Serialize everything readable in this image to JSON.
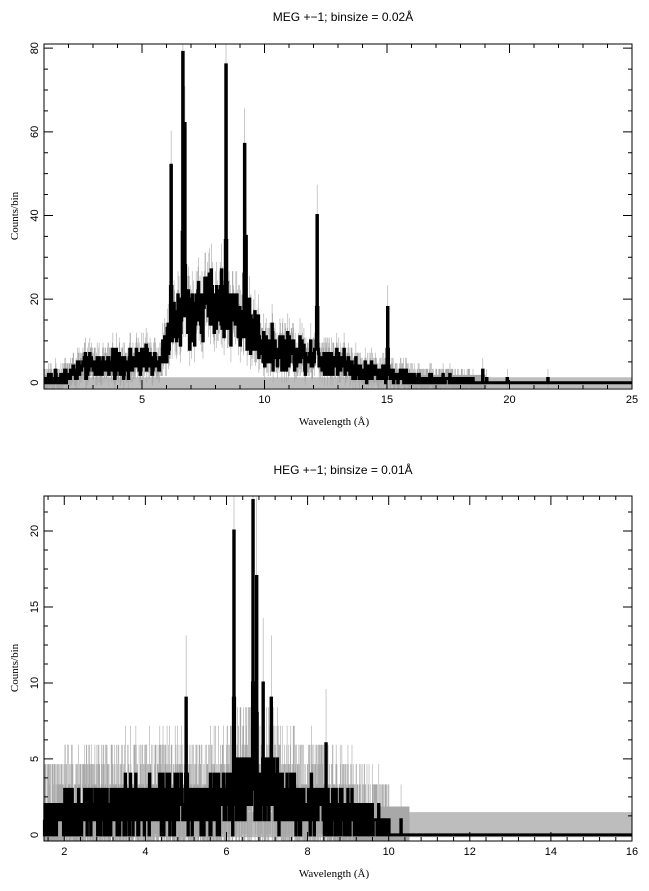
{
  "chart_data": [
    {
      "type": "line",
      "title": "MEG +−1; binsize = 0.02Å",
      "xlabel": "Wavelength (Å)",
      "ylabel": "Counts/bin",
      "xlim": [
        1.0,
        25.0
      ],
      "ylim": [
        -1.5,
        81.0
      ],
      "xticks": [
        5,
        10,
        15,
        20,
        25
      ],
      "yticks": [
        0,
        20,
        40,
        60,
        80
      ],
      "background_band": [
        -1.3,
        1.3
      ],
      "peaks": [
        {
          "x": 6.18,
          "y": 52
        },
        {
          "x": 6.65,
          "y": 79
        },
        {
          "x": 6.74,
          "y": 62
        },
        {
          "x": 8.42,
          "y": 76
        },
        {
          "x": 9.17,
          "y": 57
        },
        {
          "x": 9.23,
          "y": 35
        },
        {
          "x": 12.13,
          "y": 40
        },
        {
          "x": 15.01,
          "y": 18
        }
      ],
      "envelope": [
        [
          1.0,
          0.5
        ],
        [
          2.0,
          2
        ],
        [
          2.8,
          4
        ],
        [
          3.5,
          4
        ],
        [
          4.0,
          4.5
        ],
        [
          5.0,
          5
        ],
        [
          5.8,
          6
        ],
        [
          6.3,
          13
        ],
        [
          6.9,
          17
        ],
        [
          7.5,
          18
        ],
        [
          8.0,
          19
        ],
        [
          8.7,
          17
        ],
        [
          9.5,
          12
        ],
        [
          10.0,
          9
        ],
        [
          10.5,
          8
        ],
        [
          11.0,
          7.5
        ],
        [
          11.5,
          7
        ],
        [
          12.5,
          6
        ],
        [
          13.0,
          5
        ],
        [
          14.0,
          3
        ],
        [
          15.0,
          2
        ],
        [
          16.0,
          1
        ],
        [
          17.0,
          0.6
        ],
        [
          18.5,
          0.3
        ],
        [
          20.0,
          0.1
        ],
        [
          25.0,
          0
        ]
      ],
      "isolated_bins": [
        {
          "x": 18.9,
          "y": 3
        },
        {
          "x": 19.05,
          "y": 1
        },
        {
          "x": 19.9,
          "y": 1
        },
        {
          "x": 21.55,
          "y": 1
        }
      ],
      "noise_cutoff": 18.5,
      "seed": 1234
    },
    {
      "type": "line",
      "title": "HEG +−1; binsize = 0.01Å",
      "xlabel": "Wavelength (Å)",
      "ylabel": "Counts/bin",
      "xlim": [
        1.5,
        16.0
      ],
      "ylim": [
        -0.4,
        22.3
      ],
      "xticks": [
        2,
        4,
        6,
        8,
        10,
        12,
        14,
        16
      ],
      "yticks": [
        0,
        5,
        10,
        15,
        20
      ],
      "background_band": [
        -0.15,
        1.5
      ],
      "peaks": [
        {
          "x": 5.0,
          "y": 9
        },
        {
          "x": 6.18,
          "y": 20
        },
        {
          "x": 6.65,
          "y": 22
        },
        {
          "x": 6.74,
          "y": 17
        },
        {
          "x": 6.9,
          "y": 10
        },
        {
          "x": 7.1,
          "y": 9
        },
        {
          "x": 8.45,
          "y": 6
        }
      ],
      "envelope": [
        [
          1.5,
          1.0
        ],
        [
          2.5,
          1.5
        ],
        [
          3.5,
          1.8
        ],
        [
          4.5,
          1.8
        ],
        [
          5.5,
          2.0
        ],
        [
          6.0,
          2.4
        ],
        [
          6.5,
          3.0
        ],
        [
          7.0,
          3.0
        ],
        [
          7.5,
          2.2
        ],
        [
          8.0,
          1.9
        ],
        [
          8.5,
          1.6
        ],
        [
          9.0,
          1.2
        ],
        [
          9.5,
          0.8
        ],
        [
          10.0,
          0.3
        ],
        [
          10.4,
          0.0
        ],
        [
          16.0,
          0.0
        ]
      ],
      "isolated_bins": [
        {
          "x": 10.3,
          "y": 1
        }
      ],
      "noise_cutoff": 10.0,
      "seed": 98765
    }
  ]
}
